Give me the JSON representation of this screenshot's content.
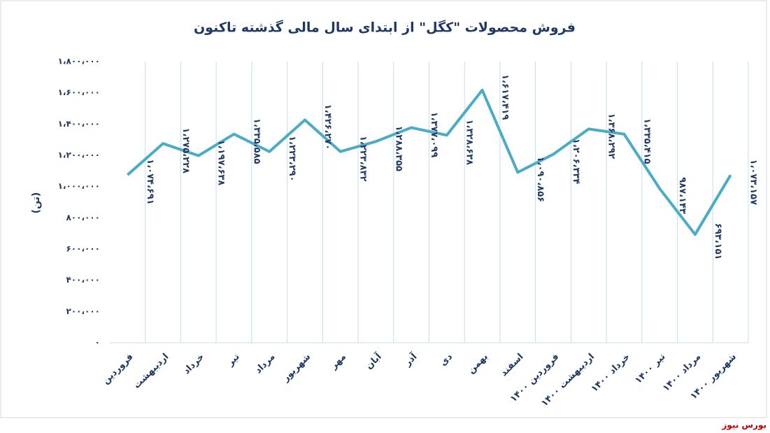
{
  "chart_data": {
    "type": "line",
    "title": "فروش محصولات \"کگل\" از ابتدای سال مالی گذشته تاکنون",
    "y_label": "(تن)",
    "source": "بورس نیوز",
    "categories": [
      "فروردین",
      "اردیبهشت",
      "خرداد",
      "تیر",
      "مرداد",
      "شهریور",
      "مهر",
      "آبان",
      "آذر",
      "دی",
      "بهمن",
      "اسفند",
      "فروردین ۱۴۰۰",
      "اردیبهشت ۱۴۰۰",
      "خرداد ۱۴۰۰",
      "تیر ۱۴۰۰",
      "مرداد ۱۴۰۰",
      "شهریور ۱۴۰۰"
    ],
    "values": [
      1074691,
      1275228,
      1197638,
      1335585,
      1223290,
      1426270,
      1223832,
      1288355,
      1377099,
      1328638,
      1617419,
      1090856,
      1206334,
      1368292,
      1335415,
      987143,
      693151,
      1073157
    ],
    "value_labels": [
      "۱،۰۷۴،۶۹۱",
      "۱،۲۷۵،۲۲۸",
      "۱،۱۹۷،۶۳۸",
      "۱،۳۳۵،۵۸۵",
      "۱،۲۲۳،۲۹۰",
      "۱،۴۲۶،۲۷۰",
      "۱،۲۲۳،۸۳۲",
      "۱،۲۸۸،۳۵۵",
      "۱،۳۷۷،۰۹۹",
      "۱،۳۲۸،۶۳۸",
      "۱،۶۱۷،۴۱۹",
      "۱،۰۹۰،۸۵۶",
      "۱،۲۰۶،۳۳۴",
      "۱،۳۶۸،۲۹۲",
      "۱،۳۳۵،۴۱۵",
      "۹۸۷،۱۴۳",
      "۶۹۳،۱۵۱",
      "۱،۰۷۳،۱۵۷"
    ],
    "color": "#4aacc6",
    "ylim": [
      0,
      1800000
    ],
    "yticks": [
      {
        "value": 0,
        "label": "۰"
      },
      {
        "value": 200000,
        "label": "۲۰۰،۰۰۰"
      },
      {
        "value": 400000,
        "label": "۴۰۰،۰۰۰"
      },
      {
        "value": 600000,
        "label": "۶۰۰،۰۰۰"
      },
      {
        "value": 800000,
        "label": "۸۰۰،۰۰۰"
      },
      {
        "value": 1000000,
        "label": "۱،۰۰۰،۰۰۰"
      },
      {
        "value": 1200000,
        "label": "۱،۲۰۰،۰۰۰"
      },
      {
        "value": 1400000,
        "label": "۱،۴۰۰،۰۰۰"
      },
      {
        "value": 1600000,
        "label": "۱،۶۰۰،۰۰۰"
      },
      {
        "value": 1800000,
        "label": "۱،۸۰۰،۰۰۰"
      }
    ],
    "grid": true
  }
}
